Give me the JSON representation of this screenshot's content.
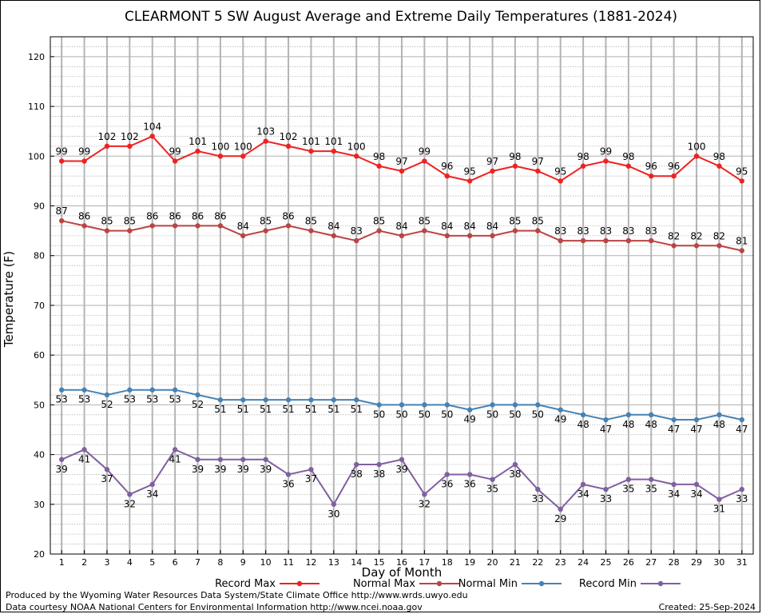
{
  "chart_data": {
    "type": "line",
    "title": "CLEARMONT 5 SW August Average and Extreme Daily Temperatures (1881-2024)",
    "xlabel": "Day of Month",
    "ylabel": "Temperature (F)",
    "ylim": [
      20,
      124
    ],
    "yticks": [
      20,
      30,
      40,
      50,
      60,
      70,
      80,
      90,
      100,
      110,
      120
    ],
    "grid": true,
    "legend_position": "bottom",
    "x": [
      1,
      2,
      3,
      4,
      5,
      6,
      7,
      8,
      9,
      10,
      11,
      12,
      13,
      14,
      15,
      16,
      17,
      18,
      19,
      20,
      21,
      22,
      23,
      24,
      25,
      26,
      27,
      28,
      29,
      30,
      31
    ],
    "series": [
      {
        "name": "Record Max",
        "color": "#ee2222",
        "values": [
          99,
          99,
          102,
          102,
          104,
          99,
          101,
          100,
          100,
          103,
          102,
          101,
          101,
          100,
          98,
          97,
          99,
          96,
          95,
          97,
          98,
          97,
          95,
          98,
          99,
          98,
          96,
          96,
          100,
          98,
          95
        ]
      },
      {
        "name": "Normal Max",
        "color": "#bb4444",
        "values": [
          87,
          86,
          85,
          85,
          86,
          86,
          86,
          86,
          84,
          85,
          86,
          85,
          84,
          83,
          85,
          84,
          85,
          84,
          84,
          84,
          85,
          85,
          83,
          83,
          83,
          83,
          83,
          82,
          82,
          82,
          81
        ]
      },
      {
        "name": "Normal Min",
        "color": "#4682b4",
        "values": [
          53,
          53,
          52,
          53,
          53,
          53,
          52,
          51,
          51,
          51,
          51,
          51,
          51,
          51,
          50,
          50,
          50,
          50,
          49,
          50,
          50,
          50,
          49,
          48,
          47,
          48,
          48,
          47,
          47,
          48,
          47
        ]
      },
      {
        "name": "Record Min",
        "color": "#8060a0",
        "values": [
          39,
          41,
          37,
          32,
          34,
          41,
          39,
          39,
          39,
          39,
          36,
          37,
          30,
          38,
          38,
          39,
          32,
          36,
          36,
          35,
          38,
          33,
          29,
          34,
          33,
          35,
          35,
          34,
          34,
          31,
          33
        ]
      }
    ]
  },
  "footer": {
    "producer": "Produced by the Wyoming Water Resources Data System/State Climate Office http://www.wrds.uwyo.edu",
    "courtesy": "Data courtesy NOAA National Centers for Environmental Information http://www.ncei.noaa.gov",
    "created": "Created:  25-Sep-2024"
  }
}
